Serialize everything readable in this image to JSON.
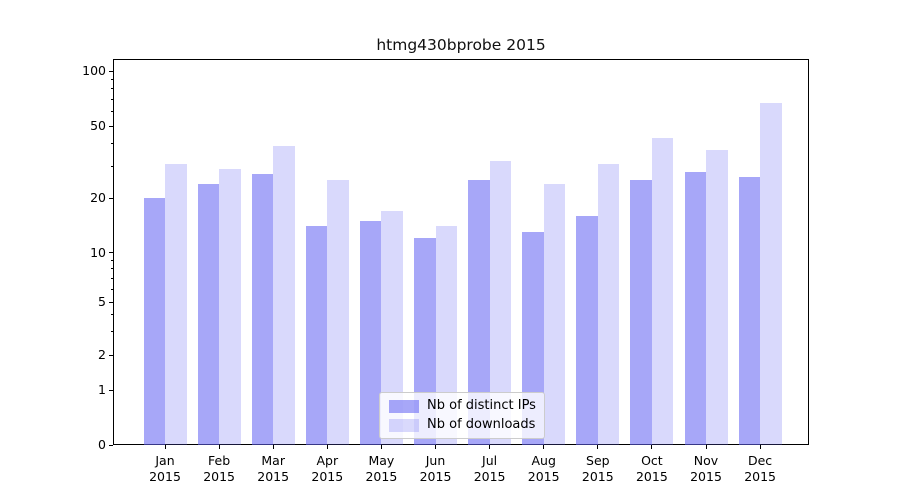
{
  "chart_data": {
    "type": "bar",
    "title": "htmg430bprobe 2015",
    "categories": [
      "Jan 2015",
      "Feb 2015",
      "Mar 2015",
      "Apr 2015",
      "May 2015",
      "Jun 2015",
      "Jul 2015",
      "Aug 2015",
      "Sep 2015",
      "Oct 2015",
      "Nov 2015",
      "Dec 2015"
    ],
    "series": [
      {
        "name": "Nb of distinct IPs",
        "color": "rgba(98,98,242,0.56)",
        "color_on_white": "#a7a7f4",
        "values": [
          20,
          24,
          27,
          14,
          15,
          12,
          25,
          13,
          16,
          25,
          28,
          26
        ]
      },
      {
        "name": "Nb of downloads",
        "color": "rgba(98,98,242,0.24)",
        "color_on_white": "#d9d9f9",
        "values": [
          31,
          29,
          39,
          25,
          17,
          14,
          32,
          24,
          31,
          43,
          37,
          67
        ]
      }
    ],
    "yscale": "symlog",
    "yticks": [
      0,
      1,
      2,
      5,
      10,
      20,
      50,
      100
    ],
    "ylim": [
      0,
      115
    ],
    "grid": {
      "major": [
        1,
        10,
        100
      ],
      "minor": [
        2,
        3,
        4,
        5,
        6,
        7,
        8,
        9,
        20,
        30,
        40,
        50,
        60,
        70,
        80,
        90
      ]
    },
    "legend": {
      "position": "bottom-center",
      "entries": [
        "Nb of distinct IPs",
        "Nb of downloads"
      ]
    }
  },
  "colors": {
    "bar_base": "#6262f2",
    "grid_major": "#d9d9d9",
    "grid_minor": "#ececec",
    "spine": "#000000",
    "text": "#000000",
    "legend_border": "#cccccc"
  }
}
